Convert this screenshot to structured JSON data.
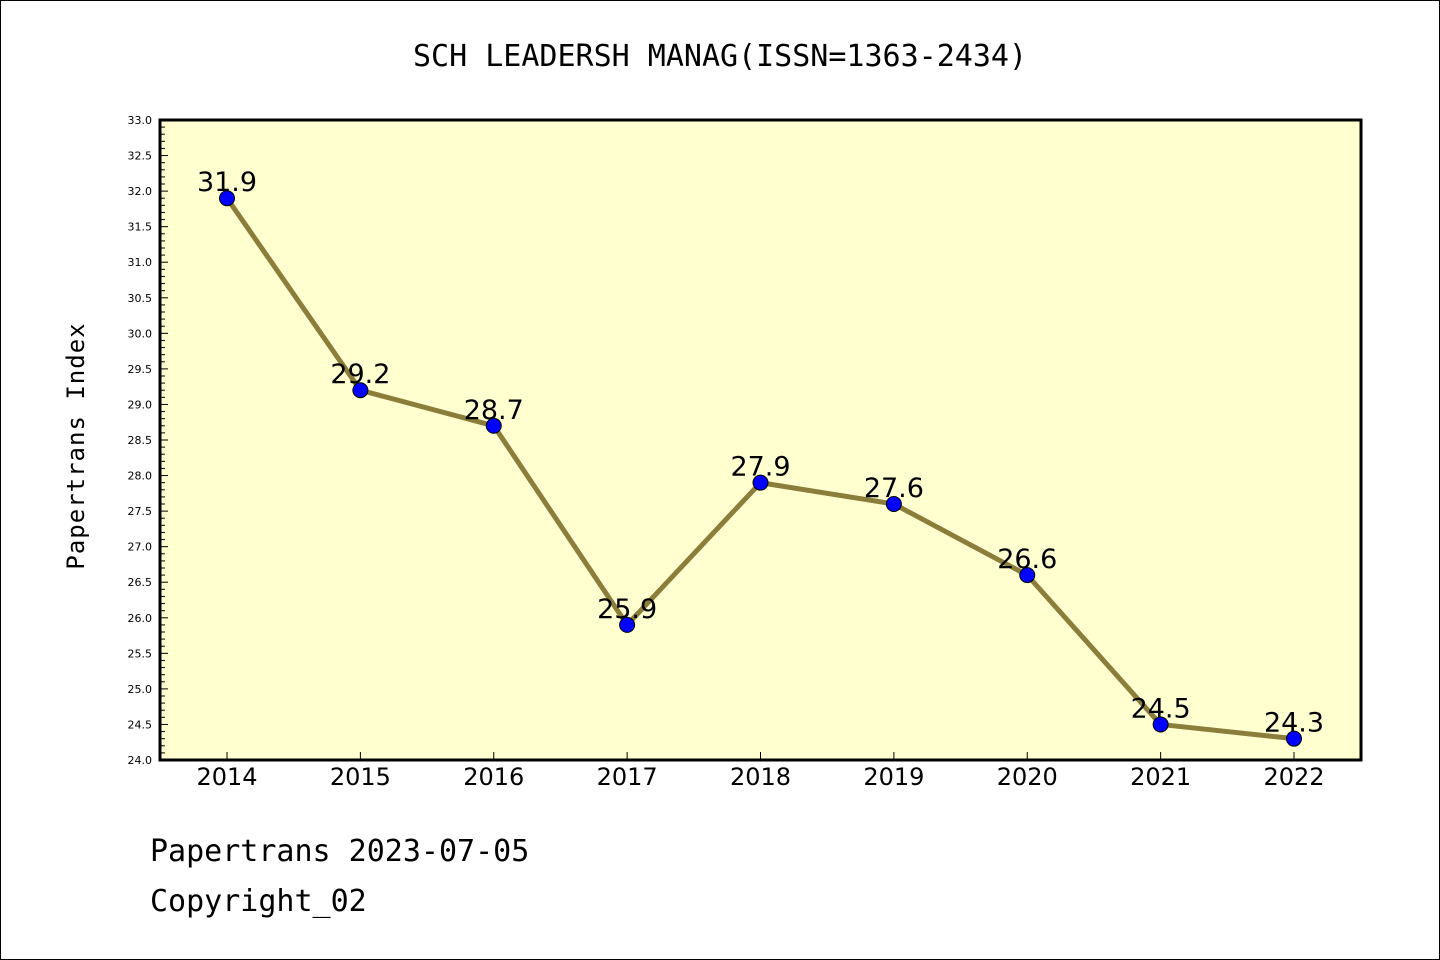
{
  "chart_data": {
    "type": "line",
    "title": "SCH LEADERSH MANAG(ISSN=1363-2434)",
    "ylabel": "Papertrans Index",
    "xlabel": "",
    "categories": [
      "2014",
      "2015",
      "2016",
      "2017",
      "2018",
      "2019",
      "2020",
      "2021",
      "2022"
    ],
    "values": [
      31.9,
      29.2,
      28.7,
      25.9,
      27.9,
      27.6,
      26.6,
      24.5,
      24.3
    ],
    "data_labels": [
      "31.9",
      "29.2",
      "28.7",
      "25.9",
      "27.9",
      "27.6",
      "26.6",
      "24.5",
      "24.3"
    ],
    "ylim": [
      24.0,
      33.0
    ],
    "yticks": [
      "24.0",
      "24.5",
      "25.0",
      "25.5",
      "26.0",
      "26.5",
      "27.0",
      "27.5",
      "28.0",
      "28.5",
      "29.0",
      "29.5",
      "30.0",
      "30.5",
      "31.0",
      "31.5",
      "32.0",
      "32.5",
      "33.0"
    ],
    "grid": false,
    "colors": {
      "plot_background": "#ffffd0",
      "line": "#8b7d3a",
      "marker": "#0000ff",
      "axes": "#000000"
    }
  },
  "footer": {
    "line1": "Papertrans 2023-07-05",
    "line2": "Copyright_02"
  }
}
